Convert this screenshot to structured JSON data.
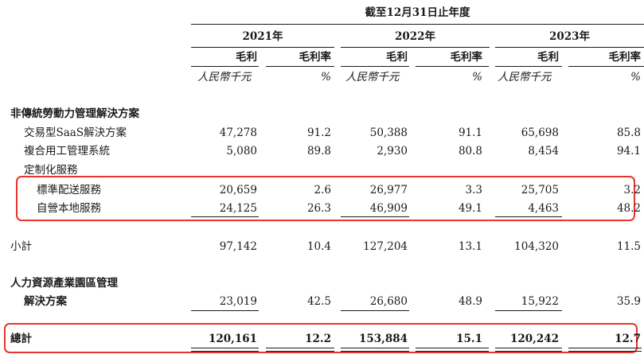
{
  "header": {
    "period": "截至12月31日止年度",
    "years": [
      "2021年",
      "2022年",
      "2023年"
    ],
    "col_gross_profit": "毛利",
    "col_margin": "毛利率",
    "unit_currency": "人民幣千元",
    "unit_percent": "%"
  },
  "section1": {
    "title": "非傳統勞動力管理解決方案",
    "rows": [
      {
        "label": "交易型SaaS解決方案",
        "values": [
          "47,278",
          "91.2",
          "50,388",
          "91.1",
          "65,698",
          "85.8"
        ]
      },
      {
        "label": "複合用工管理系統",
        "values": [
          "5,080",
          "89.8",
          "2,930",
          "80.8",
          "8,454",
          "94.1"
        ]
      }
    ],
    "subgroup_label": "定制化服務",
    "sub_rows": [
      {
        "label": "標準配送服務",
        "values": [
          "20,659",
          "2.6",
          "26,977",
          "3.3",
          "25,705",
          "3.2"
        ]
      },
      {
        "label": "自營本地服務",
        "values": [
          "24,125",
          "26.3",
          "46,909",
          "49.1",
          "4,463",
          "48.2"
        ]
      }
    ],
    "subtotal": {
      "label": "小計",
      "values": [
        "97,142",
        "10.4",
        "127,204",
        "13.1",
        "104,320",
        "11.5"
      ]
    }
  },
  "section2": {
    "title": "人力資源產業園區管理",
    "row": {
      "label": "解決方案",
      "values": [
        "23,019",
        "42.5",
        "26,680",
        "48.9",
        "15,922",
        "35.9"
      ]
    }
  },
  "total": {
    "label": "總計",
    "values": [
      "120,161",
      "12.2",
      "153,884",
      "15.1",
      "120,242",
      "12.7"
    ]
  },
  "colors": {
    "highlight_box": "#e8352b",
    "text": "#1a1a1a"
  }
}
